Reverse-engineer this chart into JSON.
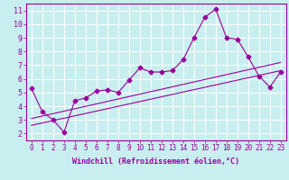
{
  "title": "",
  "xlabel": "Windchill (Refroidissement éolien,°C)",
  "ylabel": "",
  "background_color": "#c8eef0",
  "grid_color": "#ffffff",
  "line_color": "#990099",
  "xlim": [
    -0.5,
    23.5
  ],
  "ylim": [
    1.5,
    11.5
  ],
  "xtick_labels": [
    "0",
    "1",
    "2",
    "3",
    "4",
    "5",
    "6",
    "7",
    "8",
    "9",
    "10",
    "11",
    "12",
    "13",
    "14",
    "15",
    "16",
    "17",
    "18",
    "19",
    "20",
    "21",
    "22",
    "23"
  ],
  "ytick_labels": [
    "2",
    "3",
    "4",
    "5",
    "6",
    "7",
    "8",
    "9",
    "10",
    "11"
  ],
  "ytick_vals": [
    2,
    3,
    4,
    5,
    6,
    7,
    8,
    9,
    10,
    11
  ],
  "data_x": [
    0,
    1,
    2,
    3,
    4,
    5,
    6,
    7,
    8,
    9,
    10,
    11,
    12,
    13,
    14,
    15,
    16,
    17,
    18,
    19,
    20,
    21,
    22,
    23
  ],
  "data_y_main": [
    5.3,
    3.6,
    3.0,
    2.1,
    4.4,
    4.6,
    5.1,
    5.2,
    5.0,
    5.9,
    6.8,
    6.5,
    6.5,
    6.6,
    7.4,
    9.0,
    10.5,
    11.1,
    9.0,
    8.9,
    7.6,
    6.2,
    5.4,
    6.5
  ],
  "line1_x": [
    0,
    23
  ],
  "line1_y": [
    3.1,
    7.2
  ],
  "line2_x": [
    0,
    23
  ],
  "line2_y": [
    2.6,
    6.6
  ],
  "marker": "D",
  "marker_size": 2.5,
  "line_width": 0.8,
  "tick_fontsize": 5.5,
  "xlabel_fontsize": 6.0
}
